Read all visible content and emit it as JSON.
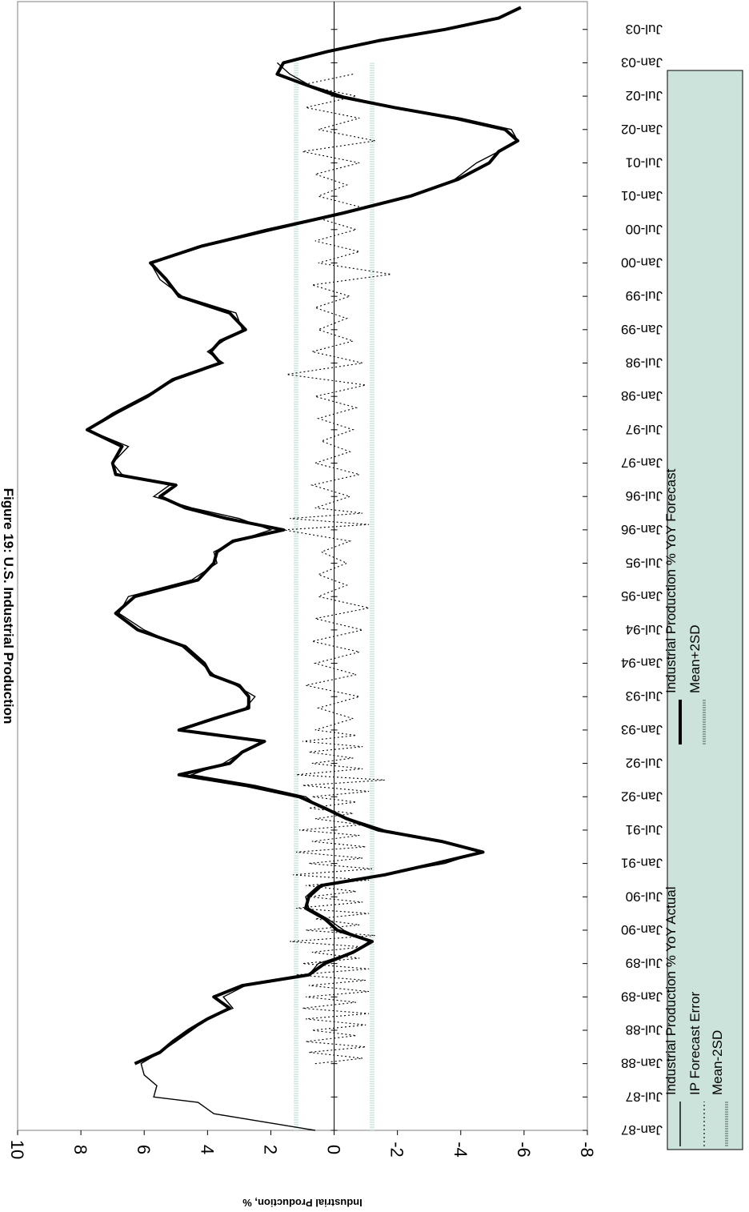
{
  "chart_data": {
    "type": "line",
    "title": "Figure 19: U.S. Industrial Production",
    "ylabel": "Industrial Production, %",
    "xlabel": "",
    "ylim": [
      -8,
      10
    ],
    "yticks": [
      10,
      8,
      6,
      4,
      2,
      0,
      -2,
      -4,
      -6,
      -8
    ],
    "xlim": [
      1987.0,
      2003.917
    ],
    "xtick_labels": [
      "Jan-87",
      "Jul-87",
      "Jan-88",
      "Jul-88",
      "Jan-89",
      "Jul-89",
      "Jan-90",
      "Jul-90",
      "Jan-91",
      "Jul-91",
      "Jan-92",
      "Jul-92",
      "Jan-93",
      "Jul-93",
      "Jan-94",
      "Jul-94",
      "Jan-95",
      "Jul-95",
      "Jan-96",
      "Jul-96",
      "Jan-97",
      "Jul-97",
      "Jan-98",
      "Jul-98",
      "Jan-99",
      "Jul-99",
      "Jan-00",
      "Jul-00",
      "Jan-01",
      "Jul-01",
      "Jan-02",
      "Jul-02",
      "Jan-03",
      "Jul-03"
    ],
    "orientation": "rotated-90-clockwise",
    "legend": {
      "placement": "bottom-right",
      "background": "#cce3dc",
      "entries": [
        {
          "label": "Industrial Production % YoY Actual",
          "style": "thin-solid"
        },
        {
          "label": "Industrial Production % YoY Forecast",
          "style": "thick-solid"
        },
        {
          "label": "IP Forecast Error",
          "style": "dotted"
        },
        {
          "label": "Mean+2SD",
          "style": "thick-light-dotted"
        },
        {
          "label": "Mean-2SD",
          "style": "thick-light-dotted"
        }
      ]
    },
    "series": [
      {
        "name": "Industrial Production % YoY Actual",
        "x": [
          1987.0,
          1987.25,
          1987.42,
          1987.5,
          1987.67,
          1987.83,
          1988.0,
          1988.17,
          1988.33,
          1988.5,
          1988.67,
          1988.83,
          1989.0,
          1989.17,
          1989.33,
          1989.5,
          1989.67,
          1989.83,
          1990.0,
          1990.17,
          1990.33,
          1990.5,
          1990.67,
          1990.83,
          1991.0,
          1991.17,
          1991.33,
          1991.5,
          1991.67,
          1991.83,
          1992.0,
          1992.17,
          1992.33,
          1992.5,
          1992.67,
          1992.83,
          1993.0,
          1993.17,
          1993.33,
          1993.5,
          1993.67,
          1993.83,
          1994.0,
          1994.25,
          1994.5,
          1994.75,
          1995.0,
          1995.25,
          1995.5,
          1995.67,
          1995.83,
          1996.0,
          1996.17,
          1996.33,
          1996.5,
          1996.67,
          1996.83,
          1997.0,
          1997.25,
          1997.5,
          1997.75,
          1998.0,
          1998.25,
          1998.5,
          1998.67,
          1998.83,
          1999.0,
          1999.25,
          1999.5,
          1999.75,
          2000.0,
          2000.25,
          2000.5,
          2000.75,
          2001.0,
          2001.25,
          2001.5,
          2001.67,
          2001.83,
          2002.0,
          2002.17,
          2002.33,
          2002.5,
          2002.67,
          2002.83,
          2003.0
        ],
        "y": [
          0.6,
          3.8,
          4.3,
          5.7,
          5.6,
          6.0,
          6.1,
          5.5,
          5.0,
          4.5,
          4.0,
          3.2,
          3.5,
          2.8,
          0.8,
          0.5,
          -0.6,
          -1.1,
          -0.3,
          0.2,
          0.8,
          0.9,
          0.5,
          -1.5,
          -3.5,
          -4.6,
          -3.5,
          -1.6,
          -0.5,
          0.4,
          0.9,
          2.5,
          4.5,
          3.5,
          2.9,
          2.3,
          4.8,
          3.7,
          2.8,
          2.5,
          3.1,
          3.8,
          4.2,
          4.8,
          6.0,
          6.8,
          6.5,
          4.5,
          3.7,
          3.8,
          3.1,
          2.0,
          3.0,
          4.5,
          5.7,
          5.2,
          6.7,
          7.0,
          6.5,
          7.8,
          7.0,
          6.0,
          5.0,
          3.5,
          4.0,
          3.5,
          2.9,
          3.1,
          4.8,
          5.5,
          5.8,
          4.3,
          2.2,
          -0.2,
          -2.5,
          -3.8,
          -4.5,
          -5.2,
          -5.8,
          -5.6,
          -4.0,
          -2.0,
          -0.3,
          0.8,
          1.4,
          1.8
        ]
      },
      {
        "name": "Industrial Production % YoY Forecast",
        "x": [
          1988.0,
          1988.17,
          1988.33,
          1988.5,
          1988.67,
          1988.83,
          1989.0,
          1989.17,
          1989.33,
          1989.5,
          1989.67,
          1989.83,
          1990.0,
          1990.17,
          1990.33,
          1990.5,
          1990.67,
          1990.83,
          1991.0,
          1991.17,
          1991.33,
          1991.5,
          1991.67,
          1991.83,
          1992.0,
          1992.17,
          1992.33,
          1992.5,
          1992.67,
          1992.83,
          1993.0,
          1993.17,
          1993.33,
          1993.5,
          1993.67,
          1993.83,
          1994.0,
          1994.25,
          1994.5,
          1994.75,
          1995.0,
          1995.25,
          1995.5,
          1995.67,
          1995.83,
          1996.0,
          1996.17,
          1996.33,
          1996.5,
          1996.67,
          1996.83,
          1997.0,
          1997.25,
          1997.5,
          1997.75,
          1998.0,
          1998.25,
          1998.5,
          1998.67,
          1998.83,
          1999.0,
          1999.25,
          1999.5,
          1999.75,
          2000.0,
          2000.25,
          2000.5,
          2000.75,
          2001.0,
          2001.25,
          2001.5,
          2001.67,
          2001.83,
          2002.0,
          2002.17,
          2002.33,
          2002.5,
          2002.67,
          2002.83,
          2003.0,
          2003.17,
          2003.33,
          2003.5,
          2003.67,
          2003.83
        ],
        "y": [
          6.3,
          5.5,
          5.1,
          4.6,
          4.0,
          3.3,
          3.8,
          2.9,
          0.8,
          0.3,
          -0.6,
          -1.2,
          -0.1,
          0.3,
          0.9,
          0.8,
          0.4,
          -1.6,
          -3.2,
          -4.7,
          -3.4,
          -1.4,
          -0.4,
          0.3,
          1.1,
          2.8,
          4.9,
          3.3,
          2.9,
          2.2,
          4.9,
          3.8,
          2.7,
          2.7,
          3.0,
          3.9,
          4.1,
          4.7,
          6.2,
          6.9,
          6.3,
          4.3,
          3.8,
          3.7,
          3.2,
          1.6,
          3.4,
          4.7,
          5.5,
          5.0,
          6.9,
          7.0,
          6.7,
          7.8,
          6.9,
          5.9,
          5.1,
          3.6,
          3.9,
          3.6,
          2.8,
          3.3,
          4.9,
          5.3,
          5.8,
          4.2,
          2.0,
          -0.3,
          -2.4,
          -3.9,
          -4.9,
          -5.2,
          -5.8,
          -5.4,
          -3.8,
          -1.9,
          -0.1,
          0.9,
          1.8,
          1.6,
          0.2,
          -1.4,
          -3.5,
          -5.2,
          -5.9
        ]
      },
      {
        "name": "IP Forecast Error",
        "x": [
          1988.0,
          1988.08,
          1988.17,
          1988.25,
          1988.33,
          1988.42,
          1988.5,
          1988.58,
          1988.67,
          1988.75,
          1988.83,
          1988.92,
          1989.0,
          1989.08,
          1989.17,
          1989.25,
          1989.33,
          1989.42,
          1989.5,
          1989.58,
          1989.67,
          1989.75,
          1989.83,
          1989.92,
          1990.0,
          1990.08,
          1990.17,
          1990.25,
          1990.33,
          1990.42,
          1990.5,
          1990.58,
          1990.67,
          1990.75,
          1990.83,
          1990.92,
          1991.0,
          1991.08,
          1991.17,
          1991.25,
          1991.33,
          1991.42,
          1991.5,
          1991.58,
          1991.67,
          1991.75,
          1991.83,
          1991.92,
          1992.0,
          1992.08,
          1992.17,
          1992.25,
          1992.33,
          1992.42,
          1992.5,
          1992.58,
          1992.67,
          1992.75,
          1992.83,
          1992.92,
          1993.0,
          1993.17,
          1993.33,
          1993.5,
          1993.67,
          1993.83,
          1994.0,
          1994.17,
          1994.33,
          1994.5,
          1994.67,
          1994.83,
          1995.0,
          1995.17,
          1995.33,
          1995.5,
          1995.67,
          1995.83,
          1996.0,
          1996.08,
          1996.17,
          1996.25,
          1996.33,
          1996.5,
          1996.67,
          1996.83,
          1997.0,
          1997.17,
          1997.33,
          1997.5,
          1997.67,
          1997.83,
          1998.0,
          1998.17,
          1998.33,
          1998.5,
          1998.67,
          1998.83,
          1999.0,
          1999.17,
          1999.33,
          1999.5,
          1999.67,
          1999.83,
          2000.0,
          2000.17,
          2000.33,
          2000.5,
          2000.67,
          2000.83,
          2001.0,
          2001.17,
          2001.33,
          2001.5,
          2001.67,
          2001.83,
          2002.0,
          2002.17,
          2002.33,
          2002.5,
          2002.67,
          2002.83
        ],
        "y": [
          0.6,
          -0.9,
          0.8,
          -1.0,
          0.9,
          -0.7,
          0.7,
          -1.0,
          0.9,
          -1.1,
          1.0,
          -0.7,
          0.9,
          -1.1,
          0.8,
          -1.0,
          1.2,
          -1.1,
          1.0,
          -0.8,
          0.7,
          -0.9,
          1.4,
          -1.3,
          0.9,
          -0.8,
          0.6,
          -1.1,
          1.2,
          -0.9,
          0.8,
          -0.7,
          0.9,
          -1.1,
          1.3,
          -1.2,
          0.8,
          -0.9,
          1.2,
          -1.0,
          0.7,
          -0.8,
          1.1,
          -0.9,
          0.6,
          -0.6,
          0.8,
          -0.7,
          0.7,
          -1.1,
          1.0,
          -1.6,
          1.2,
          -0.9,
          0.7,
          -0.6,
          0.8,
          -0.9,
          1.0,
          -0.7,
          0.6,
          -0.6,
          0.5,
          -0.8,
          0.9,
          -0.7,
          0.6,
          -0.8,
          0.7,
          -0.9,
          0.6,
          -1.1,
          0.5,
          -0.4,
          0.5,
          -0.4,
          0.4,
          -0.5,
          1.6,
          -1.1,
          1.4,
          -0.9,
          0.6,
          -0.5,
          0.7,
          -0.8,
          0.6,
          -0.5,
          0.4,
          -0.6,
          0.5,
          -0.7,
          0.6,
          -1.0,
          1.5,
          -0.9,
          0.7,
          -0.6,
          0.5,
          -0.4,
          0.6,
          -0.5,
          0.7,
          -1.8,
          0.5,
          -0.8,
          0.6,
          -0.7,
          0.5,
          -0.9,
          0.5,
          -0.4,
          0.6,
          -0.8,
          1.0,
          -1.3,
          0.5,
          -0.8,
          0.9,
          -0.7,
          1.0,
          -0.6
        ]
      },
      {
        "name": "Mean+2SD",
        "x": [
          1987.0,
          2003.0
        ],
        "y": [
          1.2,
          1.2
        ]
      },
      {
        "name": "Mean-2SD",
        "x": [
          1987.0,
          2003.0
        ],
        "y": [
          -1.2,
          -1.2
        ]
      }
    ]
  }
}
